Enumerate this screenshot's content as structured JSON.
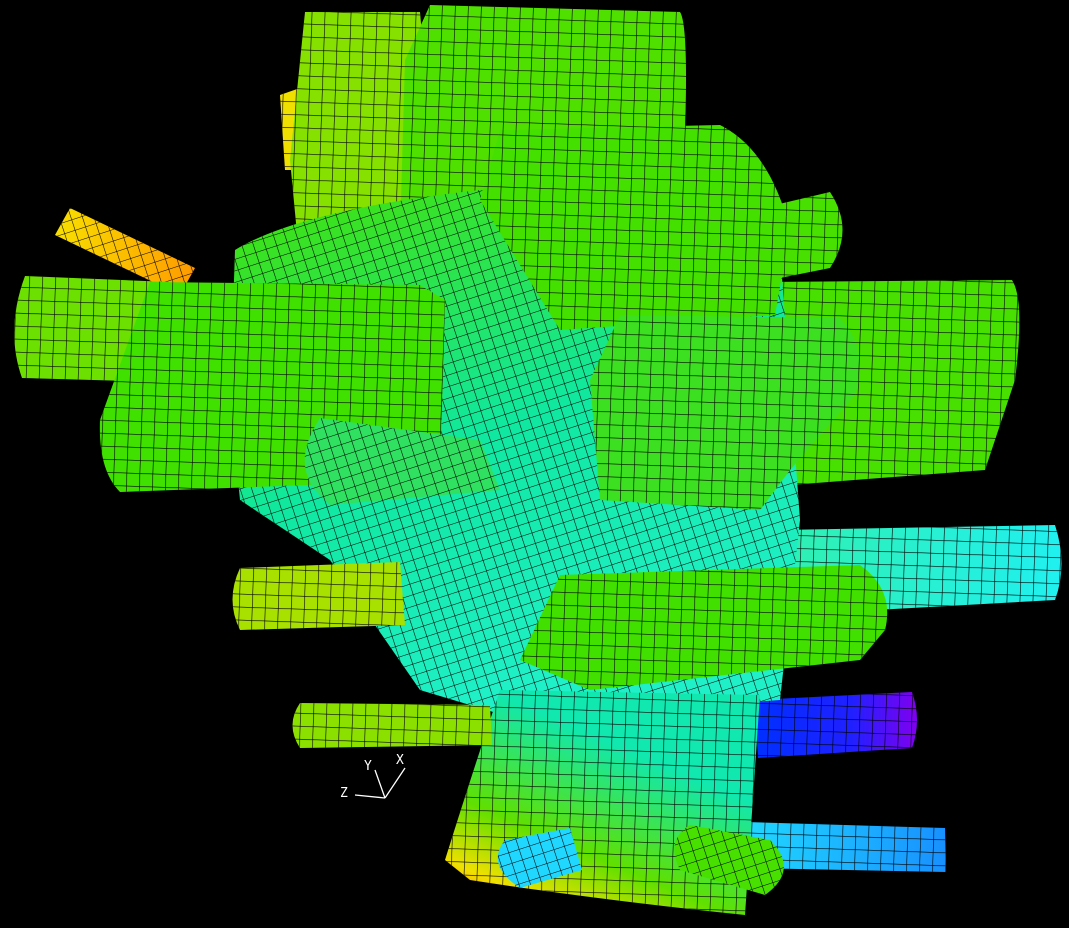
{
  "triad": {
    "labels": [
      "Z",
      "Y",
      "X"
    ]
  }
}
